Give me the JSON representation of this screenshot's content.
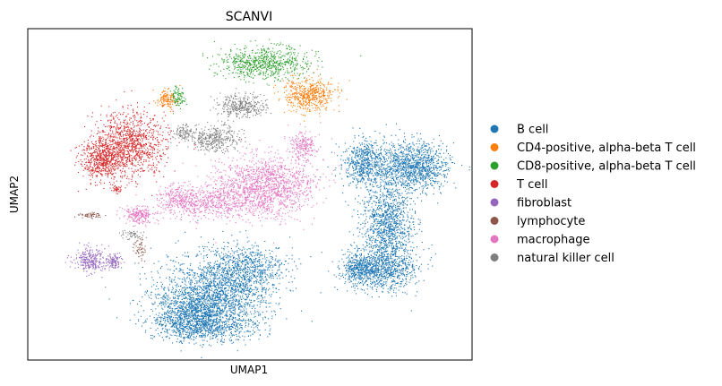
{
  "chart_data": {
    "type": "scatter",
    "title": "SCANVI",
    "xlabel": "UMAP1",
    "ylabel": "UMAP2",
    "grid": false,
    "ticks": false,
    "legend_placement": "right-outside",
    "series": [
      {
        "name": "B cell",
        "color": "#1f77b4"
      },
      {
        "name": "CD4-positive, alpha-beta T cell",
        "color": "#ff7f0e"
      },
      {
        "name": "CD8-positive, alpha-beta T cell",
        "color": "#2ca02c"
      },
      {
        "name": "T cell",
        "color": "#d62728"
      },
      {
        "name": "fibroblast",
        "color": "#9467bd"
      },
      {
        "name": "lymphocyte",
        "color": "#8c564b"
      },
      {
        "name": "macrophage",
        "color": "#e377c2"
      },
      {
        "name": "natural killer cell",
        "color": "#7f7f7f"
      }
    ]
  }
}
